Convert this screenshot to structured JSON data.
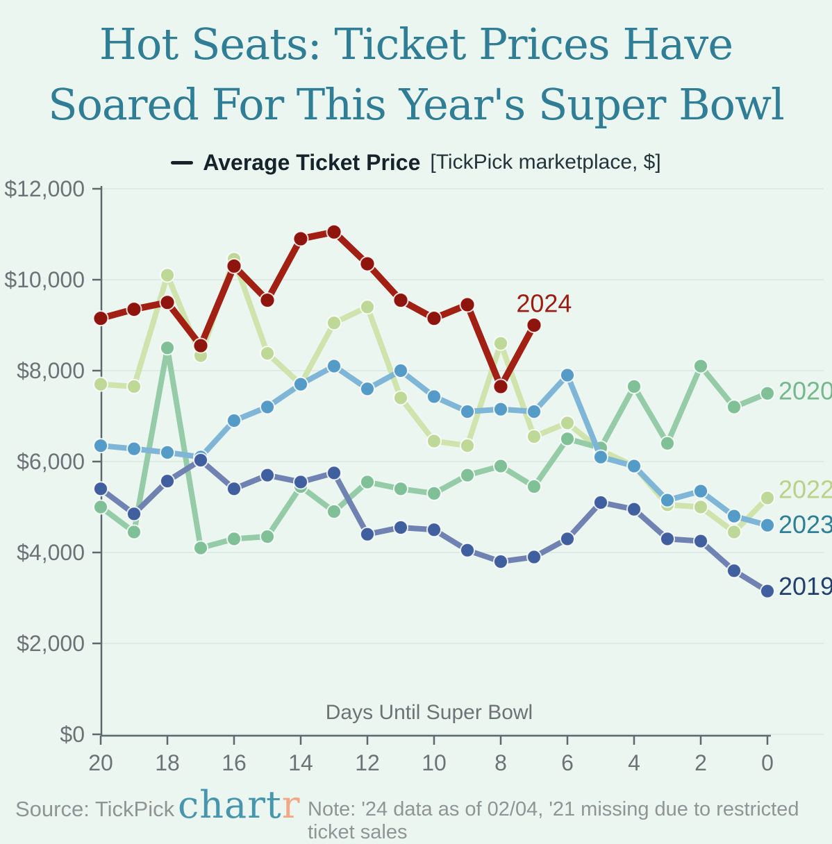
{
  "page": {
    "background": "#ecf6f1"
  },
  "title": {
    "line1": "Hot Seats: Ticket Prices Have",
    "line2": "Soared For This Year's Super Bowl",
    "color": "#2f7e96"
  },
  "legend": {
    "dash_color": "#16242a",
    "label": "Average Ticket Price",
    "qualifier": "[TickPick marketplace, $]"
  },
  "chart_data": {
    "type": "line",
    "title": "Hot Seats: Ticket Prices Have Soared For This Year's Super Bowl",
    "xlabel": "Days Until Super Bowl",
    "ylabel": "Average Ticket Price (TickPick marketplace, $)",
    "x": [
      20,
      19,
      18,
      17,
      16,
      15,
      14,
      13,
      12,
      11,
      10,
      9,
      8,
      7,
      6,
      5,
      4,
      3,
      2,
      1,
      0
    ],
    "x_ticks": [
      20,
      18,
      16,
      14,
      12,
      10,
      8,
      6,
      4,
      2,
      0
    ],
    "x_axis_reversed_countdown": true,
    "ylim": [
      0,
      12000
    ],
    "y_tick_values": [
      0,
      2000,
      4000,
      6000,
      8000,
      10000,
      12000
    ],
    "y_tick_labels": [
      "$0",
      "$2,000",
      "$4,000",
      "$6,000",
      "$8,000",
      "$10,000",
      "$12,000"
    ],
    "grid": "horizontal major gridlines only",
    "legend_position": "top-center",
    "series": [
      {
        "name": "2022",
        "line_color": "#cfe3ac",
        "dot_color": "#bed897",
        "label_color": "#b9d288",
        "label_anchor": {
          "type": "right-edge",
          "value": 5380
        },
        "values": [
          7700,
          7650,
          10100,
          8330,
          10450,
          8380,
          7700,
          9050,
          9400,
          7400,
          6450,
          6350,
          8600,
          6550,
          6850,
          6250,
          5900,
          5050,
          5000,
          4450,
          5200
        ]
      },
      {
        "name": "2020",
        "line_color": "#95cba7",
        "dot_color": "#7fc097",
        "label_color": "#76b88c",
        "label_anchor": {
          "type": "right-edge",
          "value": 7550
        },
        "values": [
          5000,
          4450,
          8500,
          4100,
          4300,
          4350,
          5450,
          4900,
          5550,
          5400,
          5300,
          5700,
          5900,
          5450,
          6500,
          6300,
          7650,
          6400,
          8100,
          7200,
          7500
        ]
      },
      {
        "name": "2023",
        "line_color": "#7fb5d6",
        "dot_color": "#559bc7",
        "label_color": "#2e7f96",
        "label_anchor": {
          "type": "right-edge",
          "value": 4610
        },
        "values": [
          6350,
          6280,
          6200,
          6100,
          6900,
          7200,
          7700,
          8100,
          7600,
          8000,
          7430,
          7100,
          7150,
          7100,
          7900,
          6100,
          5900,
          5150,
          5350,
          4800,
          4600
        ]
      },
      {
        "name": "2019",
        "line_color": "#6f82b2",
        "dot_color": "#3f5f9e",
        "label_color": "#21406e",
        "label_anchor": {
          "type": "right-edge",
          "value": 3250
        },
        "values": [
          5400,
          4850,
          5570,
          6030,
          5400,
          5700,
          5550,
          5750,
          4400,
          4550,
          4500,
          4050,
          3800,
          3900,
          4300,
          5100,
          4950,
          4300,
          4250,
          3600,
          3150
        ]
      },
      {
        "name": "2024",
        "line_color": "#a21f14",
        "dot_color": "#8e150d",
        "label_color": "#9e1d12",
        "label_anchor": {
          "type": "in-chart",
          "day": 6.7,
          "value": 9470
        },
        "values": [
          9150,
          9350,
          9500,
          8550,
          10300,
          9550,
          10900,
          11050,
          10350,
          9550,
          9150,
          9450,
          7650,
          9000,
          null,
          null,
          null,
          null,
          null,
          null,
          null
        ]
      }
    ]
  },
  "footer": {
    "source": "Source: TickPick",
    "logo_teal": "chart",
    "logo_orange": "r",
    "logo_teal_color": "#4796ad",
    "logo_orange_color": "#f2a983",
    "note": "Note: '24 data as of 02/04, '21 missing due to restricted ticket sales"
  }
}
